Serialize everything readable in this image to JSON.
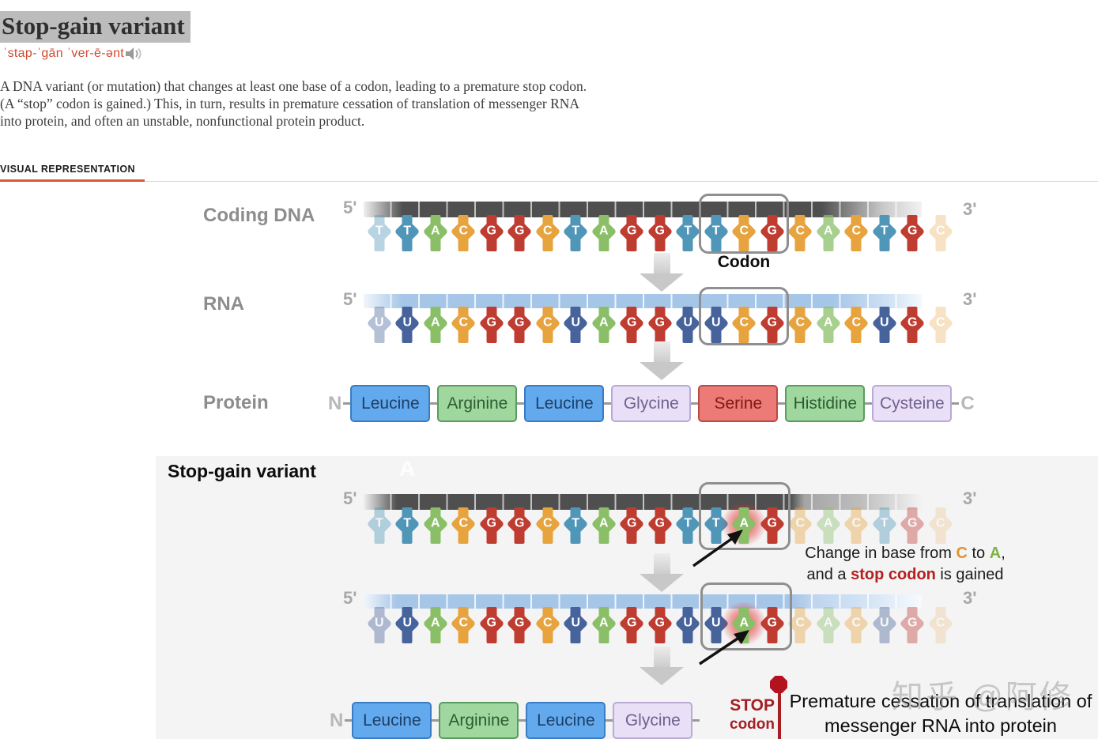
{
  "header": {
    "title": "Stop-gain variant",
    "pronunciation": "ˈstap-ˈgān ˈver-ē-ənt",
    "definition": "A DNA variant (or mutation) that changes at least one base of a codon, leading to a premature stop codon. (A “stop” codon is gained.) This, in turn, results in premature cessation of translation of messenger RNA into protein, and often an unstable, nonfunctional protein product.",
    "section_label": "VISUAL REPRESENTATION"
  },
  "labels": {
    "coding_dna": "Coding DNA",
    "rna": "RNA",
    "protein": "Protein",
    "five_prime": "5'",
    "three_prime": "3'",
    "codon": "Codon",
    "n_terminus": "N",
    "c_terminus": "C",
    "variant_heading": "Stop-gain variant",
    "stop_line1": "STOP",
    "stop_line2": "codon",
    "result_text": "Premature cessation of translation of messenger RNA into protein",
    "watermark": "知乎 @阿修",
    "ghost_letter": "A"
  },
  "colors": {
    "base": {
      "T": "#4f96b8",
      "A": "#8abf68",
      "C": "#e7a33e",
      "G": "#bf3c31",
      "U": "#47639b"
    },
    "accent_orange": "#d85c33",
    "pronunciation_red": "#d1492f",
    "stop_red": "#a51f23",
    "amino": {
      "blue": {
        "bg": "#63a9ee",
        "border": "#3a7cc4",
        "text": "#1d3f66"
      },
      "green": {
        "bg": "#a0d79e",
        "border": "#5a9c5e",
        "text": "#2d5c31"
      },
      "purple": {
        "bg": "#e9e0f8",
        "border": "#b9a9d6",
        "text": "#70628e"
      },
      "red": {
        "bg": "#ec7a76",
        "border": "#b94a44",
        "text": "#7e1a12"
      }
    }
  },
  "strands": {
    "dna_normal": {
      "bases": [
        "T",
        "T",
        "A",
        "C",
        "G",
        "G",
        "C",
        "T",
        "A",
        "G",
        "G",
        "T",
        "T",
        "C",
        "G",
        "C",
        "A",
        "C",
        "T",
        "G",
        "C"
      ],
      "faded": {
        "0": 0.4,
        "16": 0.75,
        "20": 0.3
      }
    },
    "rna_normal": {
      "bases": [
        "U",
        "U",
        "A",
        "C",
        "G",
        "G",
        "C",
        "U",
        "A",
        "G",
        "G",
        "U",
        "U",
        "C",
        "G",
        "C",
        "A",
        "C",
        "U",
        "G",
        "C"
      ],
      "faded": {
        "0": 0.4,
        "16": 0.75,
        "20": 0.3
      }
    },
    "dna_variant": {
      "bases": [
        "T",
        "T",
        "A",
        "C",
        "G",
        "G",
        "C",
        "T",
        "A",
        "G",
        "G",
        "T",
        "T",
        "A",
        "G",
        "C",
        "A",
        "C",
        "T",
        "G",
        "C"
      ],
      "mutated": 13,
      "faded": {
        "0": 0.4,
        "15": 0.4,
        "16": 0.4,
        "17": 0.4,
        "18": 0.4,
        "19": 0.4,
        "20": 0.2
      }
    },
    "rna_variant": {
      "bases": [
        "U",
        "U",
        "A",
        "C",
        "G",
        "G",
        "C",
        "U",
        "A",
        "G",
        "G",
        "U",
        "U",
        "A",
        "G",
        "C",
        "A",
        "C",
        "U",
        "G",
        "C"
      ],
      "mutated": 13,
      "faded": {
        "0": 0.4,
        "15": 0.4,
        "16": 0.4,
        "17": 0.4,
        "18": 0.4,
        "19": 0.4,
        "20": 0.2
      }
    }
  },
  "proteins": {
    "normal": [
      {
        "name": "Leucine",
        "color": "blue"
      },
      {
        "name": "Arginine",
        "color": "green"
      },
      {
        "name": "Leucine",
        "color": "blue"
      },
      {
        "name": "Glycine",
        "color": "purple"
      },
      {
        "name": "Serine",
        "color": "red"
      },
      {
        "name": "Histidine",
        "color": "green"
      },
      {
        "name": "Cysteine",
        "color": "purple"
      }
    ],
    "variant": [
      {
        "name": "Leucine",
        "color": "blue"
      },
      {
        "name": "Arginine",
        "color": "green"
      },
      {
        "name": "Leucine",
        "color": "blue"
      },
      {
        "name": "Glycine",
        "color": "purple"
      }
    ]
  },
  "annotation": {
    "lines": [
      [
        {
          "t": "Change in base from "
        },
        {
          "t": "C",
          "c": "#e0942e",
          "b": true
        },
        {
          "t": " to "
        },
        {
          "t": "A",
          "c": "#7fb347",
          "b": true
        },
        {
          "t": ","
        }
      ],
      [
        {
          "t": "and a "
        },
        {
          "t": "stop codon",
          "c": "#b3211f",
          "b": true
        },
        {
          "t": " is gained"
        }
      ]
    ]
  }
}
